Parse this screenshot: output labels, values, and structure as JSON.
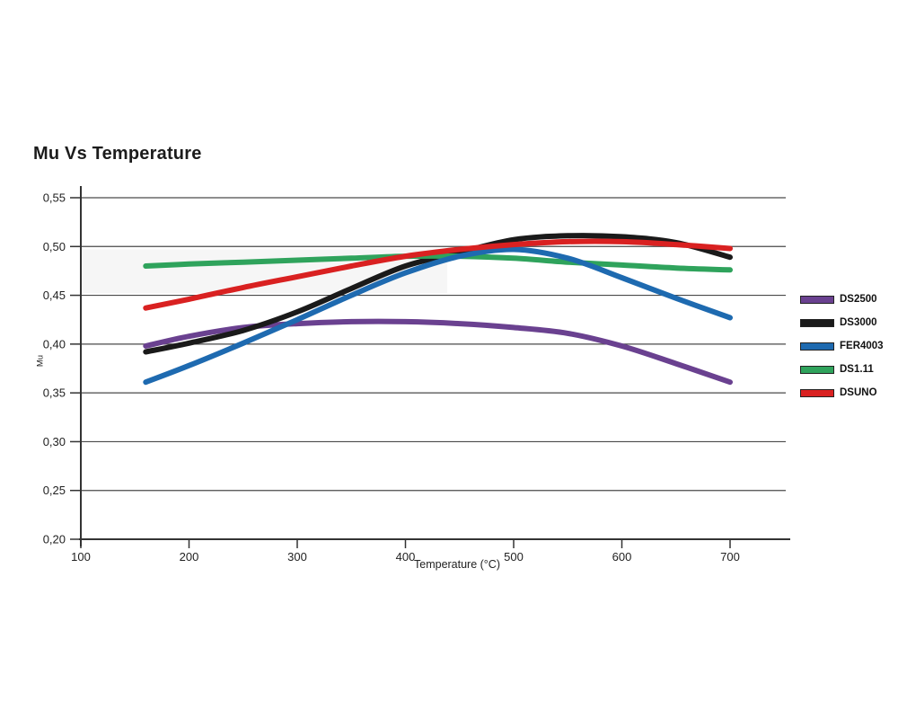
{
  "title": "Mu Vs Temperature",
  "colors": {
    "background": "#ffffff",
    "grid": "#4a4a4a",
    "axis": "#333333",
    "text": "#222222",
    "title_text": "#1c1c1c",
    "legend_swatch_border": "#222222"
  },
  "chart_data": {
    "type": "line",
    "title": "Mu Vs Temperature",
    "xlabel": "Temperature (°C)",
    "ylabel": "Mu",
    "xlim": [
      100,
      755
    ],
    "ylim": [
      0.2,
      0.55
    ],
    "grid": "horizontal",
    "legend_position": "right",
    "x_ticks": [
      100,
      200,
      300,
      400,
      500,
      600,
      700
    ],
    "x_tick_labels": [
      "100",
      "200",
      "300",
      "400",
      "500",
      "600",
      "700"
    ],
    "y_ticks": [
      0.55,
      0.5,
      0.45,
      0.4,
      0.35,
      0.3,
      0.25,
      0.2
    ],
    "y_tick_labels": [
      "0,55",
      "0,50",
      "0,45",
      "0,40",
      "0,35",
      "0,30",
      "0,25",
      "0,20"
    ],
    "x": [
      160,
      200,
      250,
      300,
      350,
      400,
      450,
      500,
      550,
      600,
      650,
      700
    ],
    "series": [
      {
        "name": "DS2500",
        "color": "#6a4190",
        "values": [
          0.398,
          0.408,
          0.417,
          0.421,
          0.423,
          0.423,
          0.421,
          0.417,
          0.411,
          0.398,
          0.38,
          0.361
        ]
      },
      {
        "name": "DS3000",
        "color": "#1a1a1a",
        "values": [
          0.392,
          0.401,
          0.414,
          0.433,
          0.457,
          0.48,
          0.494,
          0.507,
          0.511,
          0.51,
          0.504,
          0.489
        ]
      },
      {
        "name": "FER4003",
        "color": "#1e6ab0",
        "values": [
          0.361,
          0.378,
          0.401,
          0.425,
          0.45,
          0.473,
          0.49,
          0.497,
          0.488,
          0.468,
          0.447,
          0.427
        ]
      },
      {
        "name": "DS1.11",
        "color": "#2fa35c",
        "values": [
          0.48,
          0.482,
          0.484,
          0.486,
          0.488,
          0.49,
          0.49,
          0.488,
          0.484,
          0.481,
          0.478,
          0.476
        ]
      },
      {
        "name": "DSUNO",
        "color": "#d92121",
        "values": [
          0.437,
          0.446,
          0.458,
          0.469,
          0.48,
          0.49,
          0.497,
          0.502,
          0.505,
          0.505,
          0.502,
          0.498
        ]
      }
    ]
  }
}
